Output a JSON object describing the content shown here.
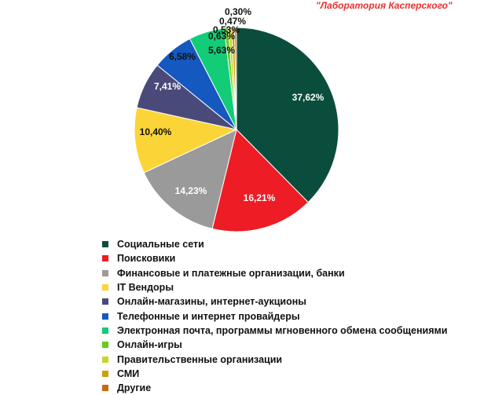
{
  "watermark": "\"Лаборатория Касперского\"",
  "chart_data": {
    "type": "pie",
    "title": "",
    "slices": [
      {
        "label": "Социальные сети",
        "value": 37.62,
        "display": "37,62%",
        "color": "#0b4d3c"
      },
      {
        "label": "Поисковики",
        "value": 16.21,
        "display": "16,21%",
        "color": "#ee1c25"
      },
      {
        "label": "Финансовые и платежные организации, банки",
        "value": 14.23,
        "display": "14,23%",
        "color": "#9a9a9a"
      },
      {
        "label": "IT Вендоры",
        "value": 10.4,
        "display": "10,40%",
        "color": "#fbd537"
      },
      {
        "label": "Онлайн-магазины, интернет-аукционы",
        "value": 7.41,
        "display": "7,41%",
        "color": "#4a4a7a"
      },
      {
        "label": "Телефонные и интернет провайдеры",
        "value": 6.58,
        "display": "6,58%",
        "color": "#1558c0"
      },
      {
        "label": "Электронная почта, программы мгновенного обмена сообщениями",
        "value": 5.63,
        "display": "5,63%",
        "color": "#12cc78"
      },
      {
        "label": "Онлайн-игры",
        "value": 0.63,
        "display": "0,63%",
        "color": "#66cc22"
      },
      {
        "label": "Правительственные организации",
        "value": 0.53,
        "display": "0,53%",
        "color": "#c8d62a"
      },
      {
        "label": "СМИ",
        "value": 0.47,
        "display": "0,47%",
        "color": "#c9a10a"
      },
      {
        "label": "Другие",
        "value": 0.3,
        "display": "0,30%",
        "color": "#c86a10"
      }
    ],
    "legend_position": "bottom-left"
  }
}
